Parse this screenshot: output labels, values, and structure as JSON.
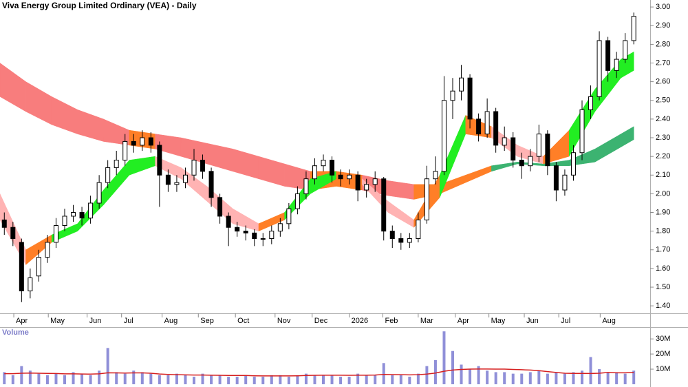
{
  "chart_data": [
    {
      "type": "candlestick",
      "title": "Viva Energy Group Limited Ordinary (VEA) - Daily",
      "xlim": [
        0,
        75
      ],
      "xticks": [
        {
          "value": 1.6,
          "label": "Apr"
        },
        {
          "value": 5.6,
          "label": "May"
        },
        {
          "value": 10.1,
          "label": "Jun"
        },
        {
          "value": 14.1,
          "label": "Jul"
        },
        {
          "value": 18.8,
          "label": "Aug"
        },
        {
          "value": 23,
          "label": "Sep"
        },
        {
          "value": 27.3,
          "label": "Oct"
        },
        {
          "value": 31.9,
          "label": "Nov"
        },
        {
          "value": 36.2,
          "label": "Dec"
        },
        {
          "value": 40.5,
          "label": "2026"
        },
        {
          "value": 44.4,
          "label": "Feb"
        },
        {
          "value": 48.5,
          "label": "Mar"
        },
        {
          "value": 52.8,
          "label": "Apr"
        },
        {
          "value": 56.7,
          "label": "May"
        },
        {
          "value": 60.8,
          "label": "Jun"
        },
        {
          "value": 64.8,
          "label": "Jul"
        },
        {
          "value": 69.6,
          "label": "Aug"
        }
      ],
      "ylim": [
        1.36,
        3.03
      ],
      "yticks": [
        {
          "value": 1.4,
          "label": "1.40"
        },
        {
          "value": 1.5,
          "label": "1.50"
        },
        {
          "value": 1.6,
          "label": "1.60"
        },
        {
          "value": 1.7,
          "label": "1.70"
        },
        {
          "value": 1.8,
          "label": "1.80"
        },
        {
          "value": 1.9,
          "label": "1.90"
        },
        {
          "value": 2.0,
          "label": "2.00"
        },
        {
          "value": 2.1,
          "label": "2.10"
        },
        {
          "value": 2.2,
          "label": "2.20"
        },
        {
          "value": 2.3,
          "label": "2.30"
        },
        {
          "value": 2.4,
          "label": "2.40"
        },
        {
          "value": 2.5,
          "label": "2.50"
        },
        {
          "value": 2.6,
          "label": "2.60"
        },
        {
          "value": 2.7,
          "label": "2.70"
        },
        {
          "value": 2.8,
          "label": "2.80"
        },
        {
          "value": 2.9,
          "label": "2.90"
        },
        {
          "value": 3.0,
          "label": "3.00"
        }
      ],
      "up_color": "#ffffff",
      "down_color": "#000000",
      "open": [
        1.86,
        1.82,
        1.74,
        1.48,
        1.56,
        1.66,
        1.74,
        1.83,
        1.88,
        1.9,
        1.87,
        1.95,
        2.06,
        2.14,
        2.18,
        2.28,
        2.26,
        2.3,
        2.26,
        2.1,
        2.05,
        2.06,
        2.1,
        2.18,
        2.12,
        1.98,
        1.88,
        1.82,
        1.8,
        1.79,
        1.76,
        1.76,
        1.8,
        1.84,
        1.92,
        2.0,
        2.08,
        2.15,
        2.18,
        2.1,
        2.08,
        2.1,
        2.02,
        2.05,
        2.08,
        1.8,
        1.76,
        1.74,
        1.76,
        1.86,
        2.08,
        2.12,
        2.5,
        2.55,
        2.62,
        2.4,
        2.32,
        2.44,
        2.26,
        2.3,
        2.18,
        2.15,
        2.2,
        2.32,
        2.15,
        2.02,
        2.1,
        2.22,
        2.45,
        2.52,
        2.82,
        2.66,
        2.72,
        2.82
      ],
      "high": [
        1.9,
        1.85,
        1.76,
        1.6,
        1.7,
        1.78,
        1.87,
        1.92,
        1.94,
        1.93,
        1.99,
        2.1,
        2.18,
        2.23,
        2.32,
        2.32,
        2.34,
        2.33,
        2.28,
        2.13,
        2.1,
        2.14,
        2.24,
        2.21,
        2.14,
        2.0,
        1.9,
        1.85,
        1.83,
        1.81,
        1.79,
        1.83,
        1.87,
        1.95,
        2.04,
        2.12,
        2.19,
        2.21,
        2.2,
        2.13,
        2.13,
        2.12,
        2.08,
        2.12,
        2.09,
        1.83,
        1.79,
        1.79,
        1.9,
        2.15,
        2.2,
        2.63,
        2.62,
        2.69,
        2.64,
        2.43,
        2.51,
        2.46,
        2.36,
        2.33,
        2.22,
        2.24,
        2.37,
        2.34,
        2.17,
        2.13,
        2.26,
        2.5,
        2.58,
        2.87,
        2.84,
        2.76,
        2.86,
        2.97
      ],
      "low": [
        1.78,
        1.72,
        1.42,
        1.44,
        1.53,
        1.63,
        1.71,
        1.8,
        1.85,
        1.83,
        1.84,
        1.92,
        2.03,
        2.1,
        2.15,
        2.22,
        2.23,
        2.22,
        1.93,
        2.01,
        2.01,
        2.03,
        2.07,
        2.08,
        1.93,
        1.84,
        1.72,
        1.77,
        1.75,
        1.72,
        1.72,
        1.73,
        1.77,
        1.81,
        1.89,
        1.97,
        2.05,
        2.12,
        2.06,
        2.04,
        2.05,
        1.96,
        1.98,
        2.01,
        1.75,
        1.71,
        1.7,
        1.71,
        1.74,
        1.84,
        2.05,
        2.1,
        2.4,
        2.5,
        2.35,
        2.28,
        2.3,
        2.22,
        2.23,
        2.14,
        2.08,
        2.12,
        2.17,
        2.1,
        1.96,
        1.99,
        2.07,
        2.18,
        2.4,
        2.5,
        2.6,
        2.62,
        2.7,
        2.8
      ],
      "close": [
        1.82,
        1.76,
        1.48,
        1.55,
        1.66,
        1.74,
        1.83,
        1.88,
        1.9,
        1.87,
        1.95,
        2.06,
        2.14,
        2.18,
        2.28,
        2.26,
        2.3,
        2.26,
        2.1,
        2.05,
        2.06,
        2.1,
        2.18,
        2.12,
        1.98,
        1.88,
        1.82,
        1.8,
        1.79,
        1.76,
        1.76,
        1.8,
        1.84,
        1.92,
        2.0,
        2.08,
        2.15,
        2.18,
        2.1,
        2.08,
        2.1,
        2.02,
        2.05,
        2.08,
        1.8,
        1.76,
        1.74,
        1.76,
        1.86,
        2.08,
        2.12,
        2.5,
        2.55,
        2.62,
        2.4,
        2.32,
        2.44,
        2.26,
        2.3,
        2.18,
        2.15,
        2.2,
        2.32,
        2.15,
        2.02,
        2.1,
        2.22,
        2.45,
        2.52,
        2.82,
        2.66,
        2.72,
        2.82,
        2.95
      ],
      "bands": [
        {
          "x": [
            0,
            3,
            6,
            9,
            12,
            15,
            18,
            21,
            24,
            27,
            30,
            33,
            36,
            39,
            42,
            45,
            48,
            51,
            54,
            57,
            60,
            63,
            66,
            69,
            72,
            73.5
          ],
          "upper": [
            2.7,
            2.6,
            2.52,
            2.45,
            2.4,
            2.34,
            2.32,
            2.3,
            2.27,
            2.24,
            2.2,
            2.16,
            2.12,
            2.12,
            2.1,
            2.07,
            2.05,
            2.05,
            2.1,
            2.15,
            2.17,
            2.16,
            2.18,
            2.24,
            2.32,
            2.36
          ],
          "lower": [
            2.52,
            2.44,
            2.37,
            2.32,
            2.28,
            2.26,
            2.24,
            2.2,
            2.16,
            2.12,
            2.08,
            2.04,
            2.02,
            2.04,
            2.02,
            1.99,
            1.97,
            2.0,
            2.06,
            2.12,
            2.16,
            2.15,
            2.15,
            2.17,
            2.25,
            2.29
          ],
          "segment_colors": [
            "#f87d7d",
            "#f87d7d",
            "#f87d7d",
            "#f87d7d",
            "#f87d7d",
            "#ff7f27",
            "#f87d7d",
            "#f87d7d",
            "#f87d7d",
            "#f87d7d",
            "#f87d7d",
            "#f87d7d",
            "#ff7f27",
            "#ff7f27",
            "#f87d7d",
            "#f87d7d",
            "#ff7f27",
            "#ff7f27",
            "#ff7f27",
            "#3cb371",
            "#3cb371",
            "#3cb371",
            "#3cb371",
            "#3cb371",
            "#3cb371"
          ]
        },
        {
          "x": [
            0,
            3,
            6,
            9,
            12,
            15,
            18,
            21,
            24,
            27,
            30,
            33,
            36,
            39,
            42,
            45,
            48,
            51,
            54,
            57,
            60,
            63,
            66,
            69,
            72,
            73.5
          ],
          "upper": [
            2.0,
            1.7,
            1.78,
            1.84,
            2.02,
            2.18,
            2.2,
            2.14,
            2.04,
            1.92,
            1.84,
            1.9,
            2.08,
            2.12,
            2.08,
            1.96,
            1.86,
            2.1,
            2.42,
            2.36,
            2.26,
            2.2,
            2.34,
            2.56,
            2.72,
            2.76
          ],
          "lower": [
            1.86,
            1.62,
            1.74,
            1.8,
            1.94,
            2.1,
            2.15,
            2.08,
            1.96,
            1.84,
            1.8,
            1.86,
            2.0,
            2.08,
            2.05,
            1.9,
            1.82,
            1.98,
            2.32,
            2.3,
            2.2,
            2.16,
            2.2,
            2.44,
            2.62,
            2.66
          ],
          "segment_colors": [
            "#ffb3b3",
            "#ff7f27",
            "#22ee22",
            "#22ee22",
            "#22ee22",
            "#22ee22",
            "#ffb3b3",
            "#ffb3b3",
            "#ffb3b3",
            "#ffb3b3",
            "#ff7f27",
            "#22ee22",
            "#22ee22",
            "#ff7f27",
            "#ffb3b3",
            "#ffb3b3",
            "#ff7f27",
            "#22ee22",
            "#ff7f27",
            "#ffb3b3",
            "#ffb3b3",
            "#ff7f27",
            "#22ee22",
            "#22ee22",
            "#22ee22"
          ]
        }
      ]
    },
    {
      "type": "bar",
      "title": "Volume",
      "color": "#8f8fd8",
      "ylim": [
        0,
        36
      ],
      "yticks": [
        {
          "value": 10,
          "label": "10M"
        },
        {
          "value": 20,
          "label": "20M"
        },
        {
          "value": 30,
          "label": "30M"
        }
      ],
      "values": [
        8,
        6,
        12,
        9,
        7,
        6,
        7,
        6,
        8,
        7,
        6,
        9,
        24,
        8,
        7,
        9,
        8,
        7,
        6,
        6,
        7,
        6,
        5,
        7,
        6,
        6,
        5,
        5,
        6,
        5,
        5,
        6,
        6,
        5,
        6,
        7,
        6,
        6,
        6,
        5,
        5,
        7,
        6,
        6,
        14,
        6,
        6,
        5,
        7,
        12,
        16,
        35,
        22,
        13,
        10,
        12,
        9,
        8,
        8,
        7,
        7,
        8,
        9,
        7,
        8,
        7,
        8,
        9,
        18,
        10,
        8,
        8,
        7,
        9
      ],
      "average": {
        "color": "#d62020",
        "values": [
          7.0,
          7.0,
          7.3,
          7.4,
          7.3,
          7.2,
          7.1,
          6.9,
          6.9,
          6.8,
          6.7,
          6.9,
          7.6,
          7.5,
          7.4,
          7.5,
          7.5,
          7.3,
          6.8,
          6.5,
          6.3,
          6.2,
          6.1,
          6.1,
          6.0,
          5.9,
          5.8,
          5.8,
          5.8,
          5.6,
          5.5,
          5.5,
          5.5,
          5.5,
          5.6,
          5.8,
          5.9,
          6.0,
          6.0,
          6.0,
          5.9,
          6.0,
          6.0,
          6.1,
          6.5,
          6.4,
          6.3,
          6.2,
          6.3,
          6.7,
          7.4,
          8.6,
          9.4,
          9.8,
          10.0,
          10.1,
          10.1,
          10.0,
          10.0,
          9.8,
          9.6,
          9.4,
          9.0,
          8.4,
          7.8,
          7.3,
          7.2,
          7.2,
          7.1,
          7.3,
          7.8,
          7.6,
          7.6,
          7.8
        ]
      }
    }
  ]
}
